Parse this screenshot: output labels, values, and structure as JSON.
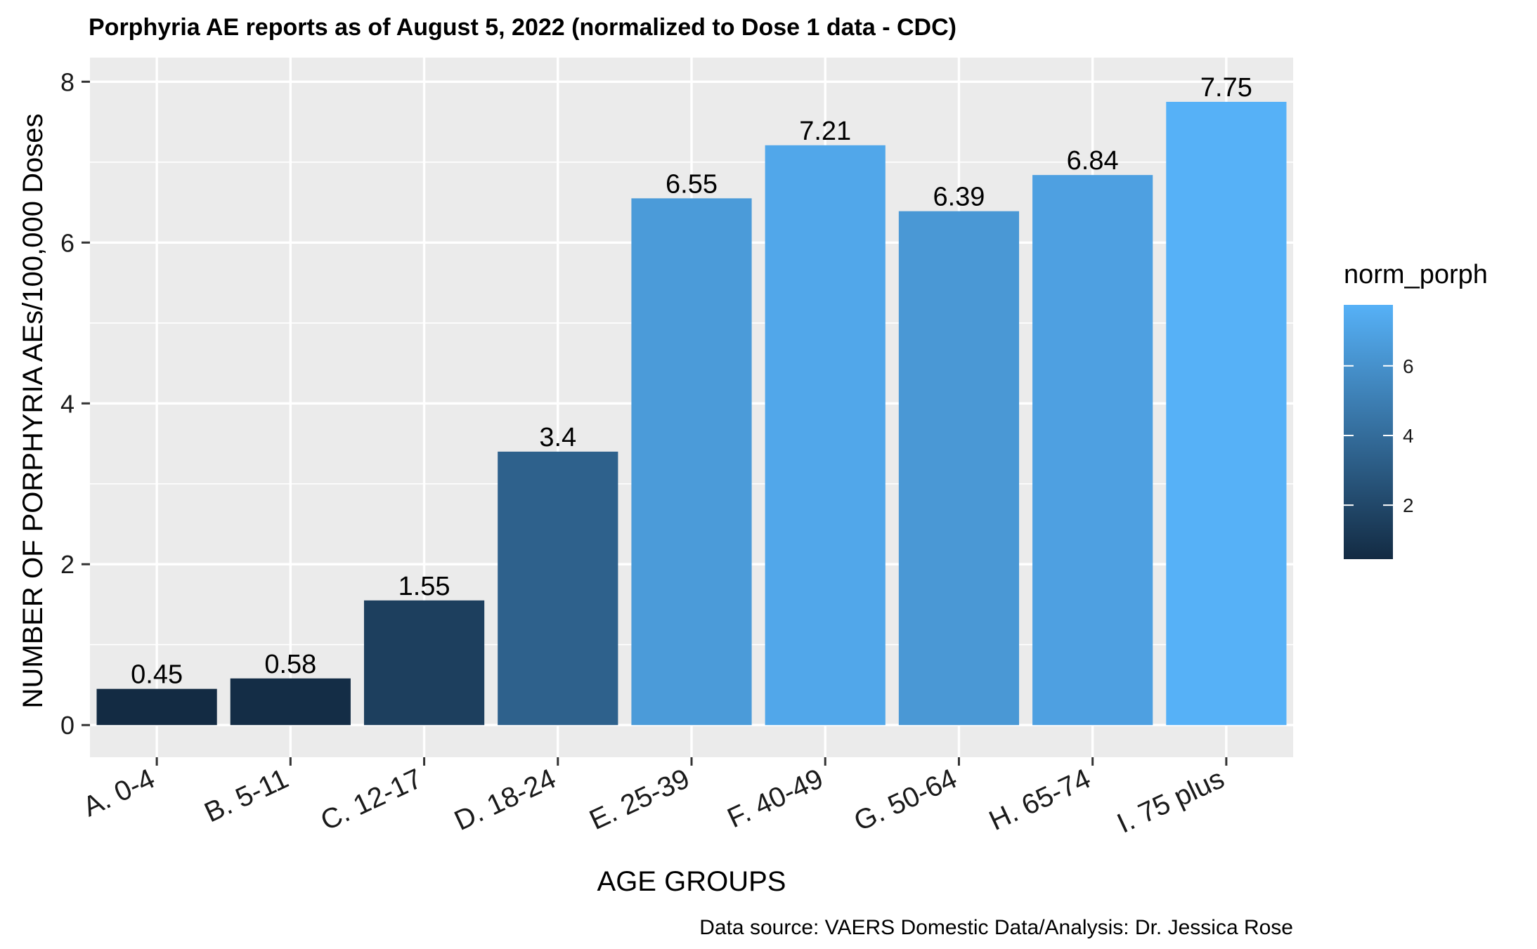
{
  "chart_data": {
    "type": "bar",
    "title": "Porphyria AE reports as of August 5, 2022 (normalized to Dose 1 data - CDC)",
    "xlabel": "AGE GROUPS",
    "ylabel": "NUMBER OF PORPHYRIA AEs/100,000 Doses",
    "caption": "Data source: VAERS Domestic Data/Analysis: Dr. Jessica Rose",
    "categories": [
      "A. 0-4",
      "B. 5-11",
      "C. 12-17",
      "D. 18-24",
      "E. 25-39",
      "F. 40-49",
      "G. 50-64",
      "H. 65-74",
      "I. 75 plus"
    ],
    "values": [
      0.45,
      0.58,
      1.55,
      3.4,
      6.55,
      7.21,
      6.39,
      6.84,
      7.75
    ],
    "data_labels": [
      "0.45",
      "0.58",
      "1.55",
      "3.4",
      "6.55",
      "7.21",
      "6.39",
      "6.84",
      "7.75"
    ],
    "ylim": [
      -0.4,
      8.3
    ],
    "yticks": [
      0,
      2,
      4,
      6,
      8
    ],
    "grid": true,
    "legend": {
      "title": "norm_porph",
      "placement": "right",
      "type": "colorbar",
      "range": [
        0.45,
        7.75
      ],
      "ticks": [
        2,
        4,
        6
      ],
      "color_low": "#132B43",
      "color_high": "#56B1F7"
    },
    "panel_background": "#EBEBEB",
    "grid_color": "#FFFFFF"
  }
}
